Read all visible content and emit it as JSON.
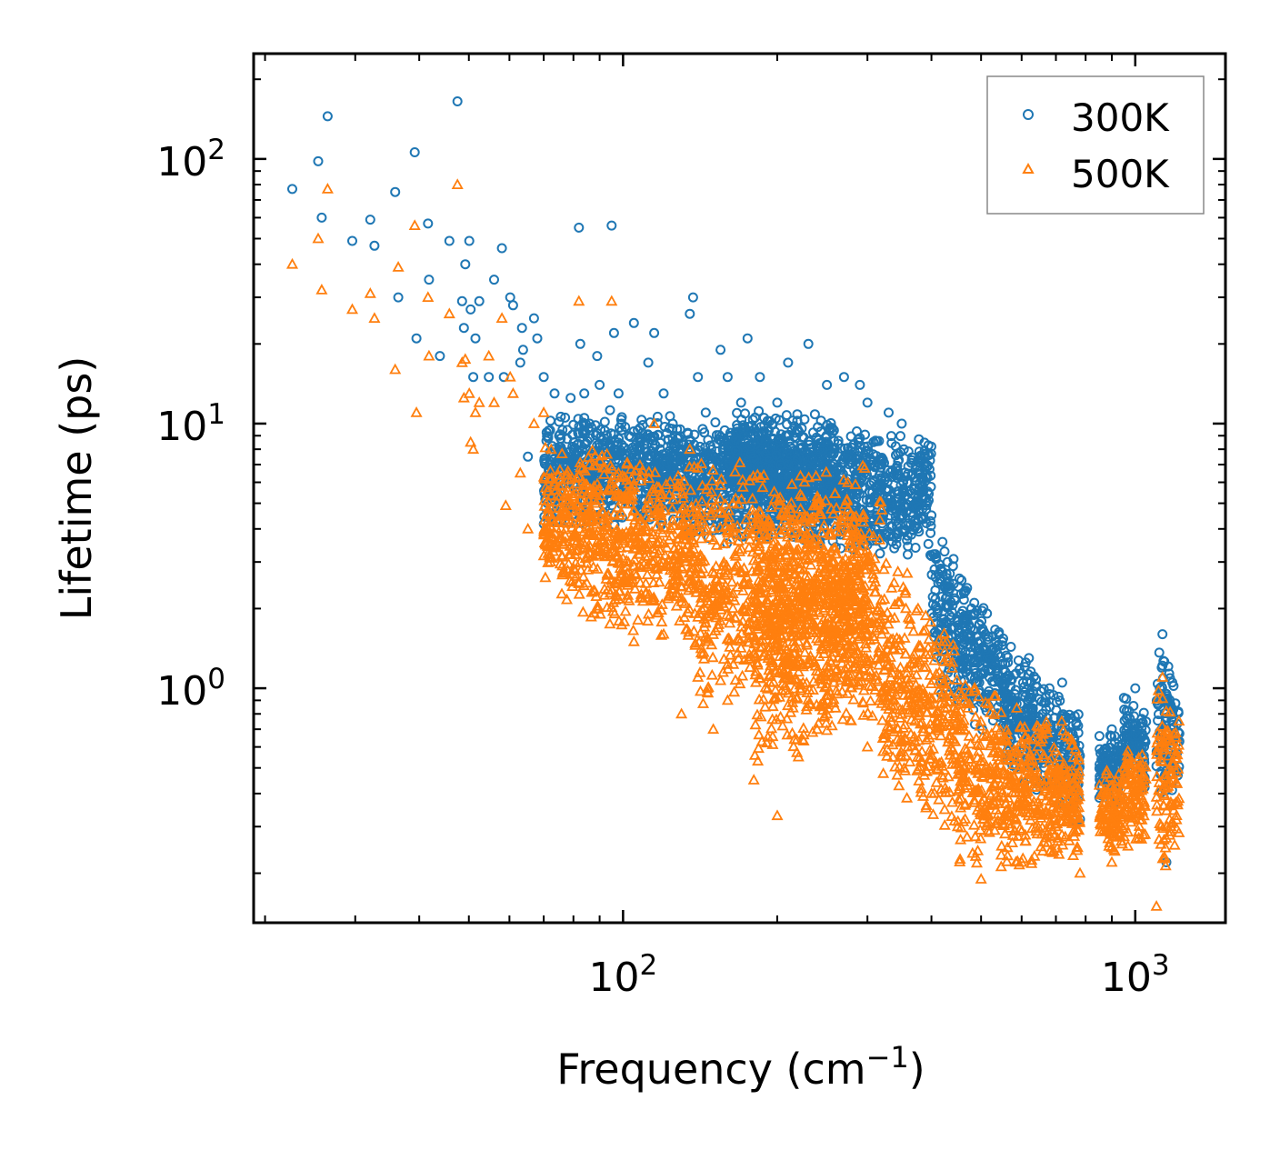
{
  "chart_data": {
    "type": "scatter",
    "title": "",
    "xlabel": "Frequency (cm",
    "xlabel_sup": "−1",
    "xlabel_end": ")",
    "ylabel": "Lifetime (ps)",
    "xscale": "log",
    "yscale": "log",
    "xlim": [
      19,
      1500
    ],
    "ylim": [
      0.13,
      250
    ],
    "x_ticks": [
      {
        "value": 100,
        "base": "10",
        "exp": "2"
      },
      {
        "value": 1000,
        "base": "10",
        "exp": "3"
      }
    ],
    "y_ticks": [
      {
        "value": 1,
        "base": "10",
        "exp": "0"
      },
      {
        "value": 10,
        "base": "10",
        "exp": "1"
      },
      {
        "value": 100,
        "base": "10",
        "exp": "2"
      }
    ],
    "legend_position": "top-right",
    "series": [
      {
        "name": "300K",
        "color": "#1f77b4",
        "marker": "circle",
        "points": [
          [
            22.6,
            77
          ],
          [
            25.4,
            98
          ],
          [
            25.8,
            60
          ],
          [
            26.5,
            145
          ],
          [
            29.6,
            49
          ],
          [
            32.1,
            59
          ],
          [
            32.7,
            47
          ],
          [
            35.9,
            75
          ],
          [
            36.4,
            30
          ],
          [
            39.2,
            106
          ],
          [
            39.5,
            21
          ],
          [
            41.6,
            57
          ],
          [
            41.8,
            35
          ],
          [
            43.9,
            18
          ],
          [
            45.8,
            49
          ],
          [
            47.5,
            165
          ],
          [
            48.5,
            29
          ],
          [
            48.9,
            23
          ],
          [
            49.2,
            40
          ],
          [
            50.1,
            49
          ],
          [
            50.4,
            27
          ],
          [
            51,
            15
          ],
          [
            51.5,
            21
          ],
          [
            52.4,
            29
          ],
          [
            54.7,
            15
          ],
          [
            56,
            35
          ],
          [
            58,
            46
          ],
          [
            58.5,
            15
          ],
          [
            60.2,
            30
          ],
          [
            61,
            28
          ],
          [
            63,
            17
          ],
          [
            63.5,
            23
          ],
          [
            63.8,
            19
          ],
          [
            65.2,
            7.5
          ],
          [
            67,
            25
          ],
          [
            68,
            21
          ],
          [
            70,
            15
          ],
          [
            73.5,
            13
          ],
          [
            75,
            9
          ],
          [
            79,
            12.5
          ],
          [
            80,
            8
          ],
          [
            82,
            55
          ],
          [
            82.5,
            20
          ],
          [
            84,
            13
          ],
          [
            86,
            10
          ],
          [
            89,
            18
          ],
          [
            90,
            14
          ],
          [
            95,
            56
          ],
          [
            96,
            22
          ],
          [
            98,
            13
          ],
          [
            105,
            24
          ],
          [
            108,
            8
          ],
          [
            112,
            17
          ],
          [
            115,
            22
          ],
          [
            120,
            13
          ],
          [
            125,
            10
          ],
          [
            130,
            8
          ],
          [
            135,
            26
          ],
          [
            137,
            30
          ],
          [
            140,
            15
          ],
          [
            145,
            11
          ],
          [
            155,
            19
          ],
          [
            160,
            15
          ],
          [
            170,
            12
          ],
          [
            175,
            21
          ],
          [
            185,
            15
          ],
          [
            200,
            12
          ],
          [
            210,
            17
          ],
          [
            230,
            20
          ],
          [
            250,
            14
          ],
          [
            270,
            15
          ],
          [
            290,
            14
          ],
          [
            300,
            12
          ],
          [
            330,
            11
          ],
          [
            350,
            10
          ],
          [
            400,
            4.5
          ],
          [
            430,
            3
          ],
          [
            470,
            1.8
          ],
          [
            500,
            1.5
          ],
          [
            550,
            1.5
          ],
          [
            620,
            1.3
          ],
          [
            680,
            1.0
          ],
          [
            720,
            1.05
          ],
          [
            780,
            0.32
          ],
          [
            900,
            0.7
          ],
          [
            1000,
            1.0
          ],
          [
            1130,
            1.6
          ],
          [
            1150,
            0.22
          ]
        ],
        "bands": [
          {
            "x": [
              70,
              130
            ],
            "ylo": [
              4,
              4
            ],
            "yhi": [
              12,
              11
            ]
          },
          {
            "x": [
              130,
              400
            ],
            "ylo": [
              3.5,
              3
            ],
            "yhi": [
              10.5,
              9.5
            ]
          },
          {
            "x": [
              160,
              260
            ],
            "ylo": [
              5,
              4
            ],
            "yhi": [
              11.5,
              11
            ]
          },
          {
            "x": [
              400,
              560
            ],
            "ylo": [
              0.9,
              0.6
            ],
            "yhi": [
              4.5,
              1.6
            ]
          },
          {
            "x": [
              560,
              780
            ],
            "ylo": [
              0.45,
              0.3
            ],
            "yhi": [
              1.5,
              0.9
            ]
          },
          {
            "x": [
              850,
              950
            ],
            "ylo": [
              0.35,
              0.35
            ],
            "yhi": [
              0.7,
              0.7
            ]
          },
          {
            "x": [
              950,
              1050
            ],
            "ylo": [
              0.45,
              0.4
            ],
            "yhi": [
              1.0,
              0.85
            ]
          },
          {
            "x": [
              1100,
              1220
            ],
            "ylo": [
              0.35,
              0.35
            ],
            "yhi": [
              1.55,
              1.3
            ]
          }
        ]
      },
      {
        "name": "500K",
        "color": "#ff7f0e",
        "marker": "triangle",
        "points": [
          [
            22.6,
            40
          ],
          [
            25.4,
            50
          ],
          [
            25.8,
            32
          ],
          [
            26.5,
            77
          ],
          [
            29.6,
            27
          ],
          [
            32.1,
            31
          ],
          [
            32.7,
            25
          ],
          [
            35.9,
            16
          ],
          [
            36.4,
            39
          ],
          [
            39.2,
            56
          ],
          [
            39.5,
            11
          ],
          [
            41.6,
            30
          ],
          [
            41.8,
            18
          ],
          [
            45.8,
            26
          ],
          [
            47.5,
            80
          ],
          [
            48.5,
            17
          ],
          [
            48.9,
            12.5
          ],
          [
            49.2,
            17.5
          ],
          [
            50.1,
            13
          ],
          [
            50.4,
            8.5
          ],
          [
            51,
            8
          ],
          [
            51.5,
            11
          ],
          [
            52.4,
            12
          ],
          [
            54.7,
            18
          ],
          [
            56,
            12
          ],
          [
            58,
            25
          ],
          [
            59,
            4.9
          ],
          [
            60.2,
            15
          ],
          [
            61,
            13
          ],
          [
            63,
            6.5
          ],
          [
            65.2,
            4.0
          ],
          [
            67,
            10
          ],
          [
            70,
            11
          ],
          [
            73.5,
            6
          ],
          [
            75,
            3.7
          ],
          [
            79,
            4.2
          ],
          [
            82,
            29
          ],
          [
            82.5,
            3.0
          ],
          [
            86,
            7
          ],
          [
            89,
            2.0
          ],
          [
            95,
            29
          ],
          [
            98,
            6.5
          ],
          [
            105,
            1.5
          ],
          [
            108,
            2.5
          ],
          [
            115,
            10
          ],
          [
            120,
            1.6
          ],
          [
            130,
            0.8
          ],
          [
            135,
            8
          ],
          [
            140,
            1.1
          ],
          [
            150,
            0.7
          ],
          [
            160,
            0.9
          ],
          [
            180,
            0.45
          ],
          [
            200,
            0.33
          ],
          [
            220,
            0.55
          ],
          [
            250,
            0.8
          ],
          [
            300,
            0.6
          ],
          [
            350,
            0.55
          ],
          [
            400,
            0.4
          ],
          [
            450,
            0.3
          ],
          [
            500,
            0.19
          ],
          [
            600,
            0.22
          ],
          [
            700,
            0.3
          ],
          [
            780,
            0.2
          ],
          [
            900,
            0.22
          ],
          [
            1000,
            0.35
          ],
          [
            1100,
            0.15
          ],
          [
            1130,
            1.1
          ]
        ],
        "bands": [
          {
            "x": [
              70,
              140
            ],
            "ylo": [
              2,
              1.3
            ],
            "yhi": [
              9,
              8
            ]
          },
          {
            "x": [
              140,
              320
            ],
            "ylo": [
              0.8,
              0.6
            ],
            "yhi": [
              8,
              6
            ]
          },
          {
            "x": [
              180,
              300
            ],
            "ylo": [
              0.4,
              0.7
            ],
            "yhi": [
              7.5,
              7
            ]
          },
          {
            "x": [
              320,
              450
            ],
            "ylo": [
              0.4,
              0.25
            ],
            "yhi": [
              3.5,
              1.8
            ]
          },
          {
            "x": [
              450,
              780
            ],
            "ylo": [
              0.2,
              0.2
            ],
            "yhi": [
              1.2,
              0.7
            ]
          },
          {
            "x": [
              850,
              950
            ],
            "ylo": [
              0.22,
              0.22
            ],
            "yhi": [
              0.5,
              0.5
            ]
          },
          {
            "x": [
              950,
              1050
            ],
            "ylo": [
              0.25,
              0.25
            ],
            "yhi": [
              0.65,
              0.6
            ]
          },
          {
            "x": [
              1100,
              1220
            ],
            "ylo": [
              0.17,
              0.25
            ],
            "yhi": [
              1.1,
              0.9
            ]
          }
        ]
      }
    ]
  }
}
